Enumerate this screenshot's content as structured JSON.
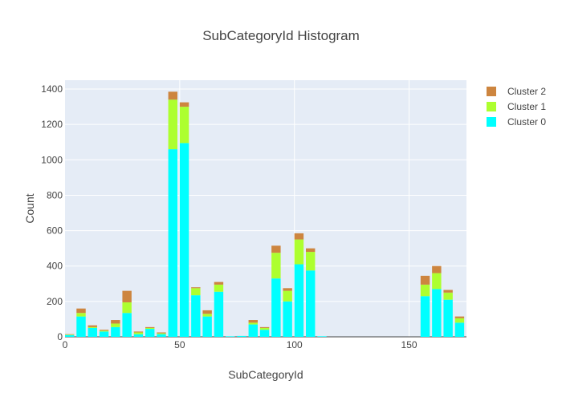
{
  "chart_data": {
    "type": "bar",
    "stacked": true,
    "title": "SubCategoryId Histogram",
    "xlabel": "SubCategoryId",
    "ylabel": "Count",
    "xlim": [
      0,
      175
    ],
    "ylim": [
      0,
      1450
    ],
    "x_ticks": [
      0,
      50,
      100,
      150
    ],
    "y_ticks": [
      0,
      200,
      400,
      600,
      800,
      1000,
      1200,
      1400
    ],
    "grid": true,
    "legend_position": "top-right",
    "x": [
      2,
      7,
      12,
      17,
      22,
      27,
      32,
      37,
      42,
      47,
      52,
      57,
      62,
      67,
      72,
      77,
      82,
      87,
      92,
      97,
      102,
      107,
      112,
      117,
      122,
      127,
      132,
      137,
      142,
      147,
      152,
      157,
      162,
      167,
      172
    ],
    "series": [
      {
        "name": "Cluster 0",
        "color": "#00ffff",
        "values": [
          10,
          115,
          50,
          30,
          55,
          135,
          15,
          45,
          15,
          1060,
          1095,
          235,
          115,
          255,
          3,
          5,
          70,
          40,
          330,
          200,
          410,
          375,
          3,
          0,
          0,
          0,
          0,
          0,
          0,
          0,
          0,
          230,
          270,
          210,
          80
        ]
      },
      {
        "name": "Cluster 1",
        "color": "#adff2f",
        "values": [
          3,
          20,
          5,
          5,
          20,
          60,
          10,
          5,
          5,
          280,
          205,
          40,
          15,
          40,
          0,
          0,
          10,
          10,
          145,
          60,
          140,
          105,
          0,
          0,
          0,
          0,
          0,
          0,
          0,
          0,
          0,
          65,
          90,
          40,
          25
        ]
      },
      {
        "name": "Cluster 2",
        "color": "#cd853f",
        "values": [
          2,
          25,
          10,
          5,
          20,
          65,
          5,
          5,
          5,
          45,
          25,
          5,
          20,
          15,
          0,
          0,
          15,
          5,
          40,
          15,
          35,
          20,
          0,
          0,
          0,
          0,
          0,
          0,
          0,
          0,
          0,
          50,
          40,
          15,
          10
        ]
      }
    ]
  }
}
